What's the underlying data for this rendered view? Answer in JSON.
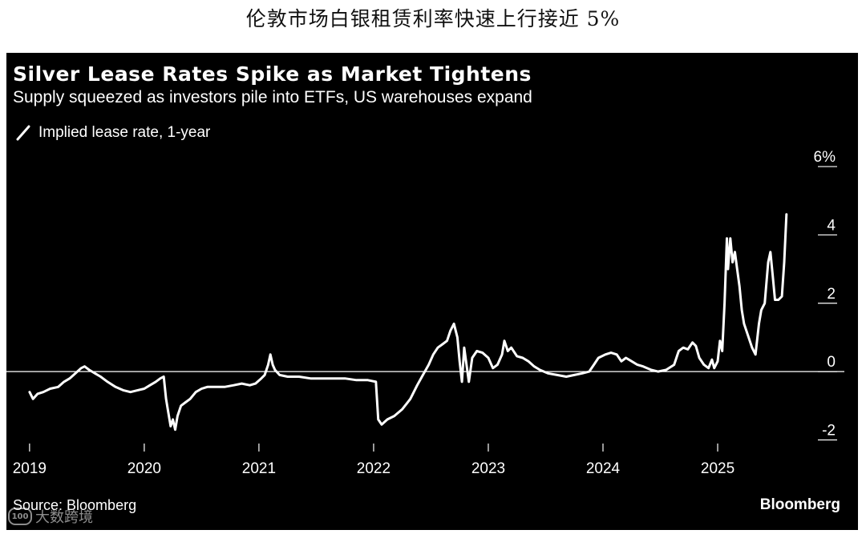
{
  "page": {
    "heading": "伦敦市场白银租赁利率快速上行接近 5%"
  },
  "chart_data": {
    "type": "line",
    "title": "Silver Lease Rates Spike as Market Tightens",
    "subtitle": "Supply squeezed as investors pile into ETFs, US warehouses expand",
    "legend": {
      "placement": "top-left",
      "entries": [
        "Implied lease rate, 1-year"
      ]
    },
    "x_tick_labels": [
      "2019",
      "2020",
      "2021",
      "2022",
      "2023",
      "2024",
      "2025"
    ],
    "x_ticks": [
      2019,
      2020,
      2021,
      2022,
      2023,
      2024,
      2025
    ],
    "xlim": [
      2018.98,
      2025.72
    ],
    "y_tick_labels": [
      "6%",
      "4",
      "2",
      "0",
      "-2"
    ],
    "y_ticks": [
      6,
      4,
      2,
      0,
      -2
    ],
    "ylim": [
      -2.2,
      6.4
    ],
    "zero_line": true,
    "grid": false,
    "series": [
      {
        "name": "Implied lease rate, 1-year",
        "color": "#ffffff",
        "points": [
          [
            2019.0,
            -0.6
          ],
          [
            2019.03,
            -0.8
          ],
          [
            2019.07,
            -0.65
          ],
          [
            2019.12,
            -0.6
          ],
          [
            2019.18,
            -0.5
          ],
          [
            2019.25,
            -0.45
          ],
          [
            2019.3,
            -0.3
          ],
          [
            2019.35,
            -0.2
          ],
          [
            2019.4,
            -0.05
          ],
          [
            2019.45,
            0.1
          ],
          [
            2019.48,
            0.15
          ],
          [
            2019.52,
            0.05
          ],
          [
            2019.57,
            -0.05
          ],
          [
            2019.62,
            -0.15
          ],
          [
            2019.68,
            -0.3
          ],
          [
            2019.75,
            -0.45
          ],
          [
            2019.82,
            -0.55
          ],
          [
            2019.88,
            -0.6
          ],
          [
            2019.94,
            -0.55
          ],
          [
            2020.0,
            -0.5
          ],
          [
            2020.05,
            -0.4
          ],
          [
            2020.1,
            -0.3
          ],
          [
            2020.14,
            -0.2
          ],
          [
            2020.17,
            -0.15
          ],
          [
            2020.19,
            -0.8
          ],
          [
            2020.21,
            -1.2
          ],
          [
            2020.23,
            -1.6
          ],
          [
            2020.25,
            -1.4
          ],
          [
            2020.27,
            -1.7
          ],
          [
            2020.29,
            -1.3
          ],
          [
            2020.32,
            -1.0
          ],
          [
            2020.36,
            -0.9
          ],
          [
            2020.4,
            -0.8
          ],
          [
            2020.45,
            -0.6
          ],
          [
            2020.5,
            -0.5
          ],
          [
            2020.55,
            -0.45
          ],
          [
            2020.62,
            -0.45
          ],
          [
            2020.7,
            -0.45
          ],
          [
            2020.78,
            -0.4
          ],
          [
            2020.85,
            -0.35
          ],
          [
            2020.92,
            -0.4
          ],
          [
            2020.97,
            -0.35
          ],
          [
            2021.02,
            -0.2
          ],
          [
            2021.05,
            -0.1
          ],
          [
            2021.08,
            0.2
          ],
          [
            2021.1,
            0.5
          ],
          [
            2021.12,
            0.2
          ],
          [
            2021.14,
            0.05
          ],
          [
            2021.18,
            -0.1
          ],
          [
            2021.25,
            -0.15
          ],
          [
            2021.35,
            -0.15
          ],
          [
            2021.45,
            -0.2
          ],
          [
            2021.55,
            -0.2
          ],
          [
            2021.65,
            -0.2
          ],
          [
            2021.75,
            -0.2
          ],
          [
            2021.85,
            -0.25
          ],
          [
            2021.95,
            -0.25
          ],
          [
            2022.02,
            -0.3
          ],
          [
            2022.04,
            -1.4
          ],
          [
            2022.07,
            -1.55
          ],
          [
            2022.12,
            -1.4
          ],
          [
            2022.18,
            -1.3
          ],
          [
            2022.25,
            -1.1
          ],
          [
            2022.32,
            -0.8
          ],
          [
            2022.38,
            -0.4
          ],
          [
            2022.43,
            -0.1
          ],
          [
            2022.48,
            0.2
          ],
          [
            2022.52,
            0.5
          ],
          [
            2022.56,
            0.7
          ],
          [
            2022.6,
            0.8
          ],
          [
            2022.64,
            0.9
          ],
          [
            2022.67,
            1.2
          ],
          [
            2022.7,
            1.4
          ],
          [
            2022.73,
            1.0
          ],
          [
            2022.75,
            0.3
          ],
          [
            2022.77,
            -0.3
          ],
          [
            2022.79,
            0.7
          ],
          [
            2022.81,
            0.2
          ],
          [
            2022.83,
            -0.3
          ],
          [
            2022.86,
            0.4
          ],
          [
            2022.9,
            0.6
          ],
          [
            2022.95,
            0.55
          ],
          [
            2023.0,
            0.4
          ],
          [
            2023.04,
            0.1
          ],
          [
            2023.08,
            0.2
          ],
          [
            2023.12,
            0.5
          ],
          [
            2023.14,
            0.9
          ],
          [
            2023.17,
            0.6
          ],
          [
            2023.2,
            0.7
          ],
          [
            2023.25,
            0.45
          ],
          [
            2023.3,
            0.4
          ],
          [
            2023.35,
            0.3
          ],
          [
            2023.4,
            0.15
          ],
          [
            2023.45,
            0.05
          ],
          [
            2023.52,
            -0.05
          ],
          [
            2023.6,
            -0.1
          ],
          [
            2023.68,
            -0.15
          ],
          [
            2023.75,
            -0.1
          ],
          [
            2023.82,
            -0.05
          ],
          [
            2023.88,
            0.0
          ],
          [
            2023.92,
            0.2
          ],
          [
            2023.96,
            0.4
          ],
          [
            2024.02,
            0.5
          ],
          [
            2024.07,
            0.55
          ],
          [
            2024.12,
            0.5
          ],
          [
            2024.16,
            0.3
          ],
          [
            2024.2,
            0.4
          ],
          [
            2024.25,
            0.3
          ],
          [
            2024.3,
            0.2
          ],
          [
            2024.35,
            0.15
          ],
          [
            2024.42,
            0.05
          ],
          [
            2024.48,
            0.0
          ],
          [
            2024.55,
            0.05
          ],
          [
            2024.62,
            0.2
          ],
          [
            2024.66,
            0.6
          ],
          [
            2024.7,
            0.7
          ],
          [
            2024.74,
            0.65
          ],
          [
            2024.78,
            0.85
          ],
          [
            2024.81,
            0.75
          ],
          [
            2024.84,
            0.4
          ],
          [
            2024.88,
            0.2
          ],
          [
            2024.92,
            0.1
          ],
          [
            2024.95,
            0.35
          ],
          [
            2024.97,
            0.1
          ],
          [
            2025.0,
            0.3
          ],
          [
            2025.02,
            0.9
          ],
          [
            2025.04,
            0.6
          ],
          [
            2025.06,
            2.0
          ],
          [
            2025.08,
            3.9
          ],
          [
            2025.09,
            3.0
          ],
          [
            2025.11,
            3.9
          ],
          [
            2025.13,
            3.2
          ],
          [
            2025.15,
            3.5
          ],
          [
            2025.17,
            3.0
          ],
          [
            2025.19,
            2.5
          ],
          [
            2025.21,
            1.8
          ],
          [
            2025.23,
            1.4
          ],
          [
            2025.26,
            1.1
          ],
          [
            2025.3,
            0.7
          ],
          [
            2025.33,
            0.5
          ],
          [
            2025.36,
            1.4
          ],
          [
            2025.38,
            1.8
          ],
          [
            2025.41,
            2.0
          ],
          [
            2025.44,
            3.2
          ],
          [
            2025.46,
            3.5
          ],
          [
            2025.48,
            2.8
          ],
          [
            2025.5,
            2.1
          ],
          [
            2025.53,
            2.1
          ],
          [
            2025.56,
            2.2
          ],
          [
            2025.58,
            3.2
          ],
          [
            2025.6,
            4.6
          ]
        ]
      }
    ]
  },
  "footer": {
    "source": "Source: Bloomberg",
    "brand": "Bloomberg"
  },
  "watermark": {
    "logo": "100",
    "text": "大数跨境"
  }
}
